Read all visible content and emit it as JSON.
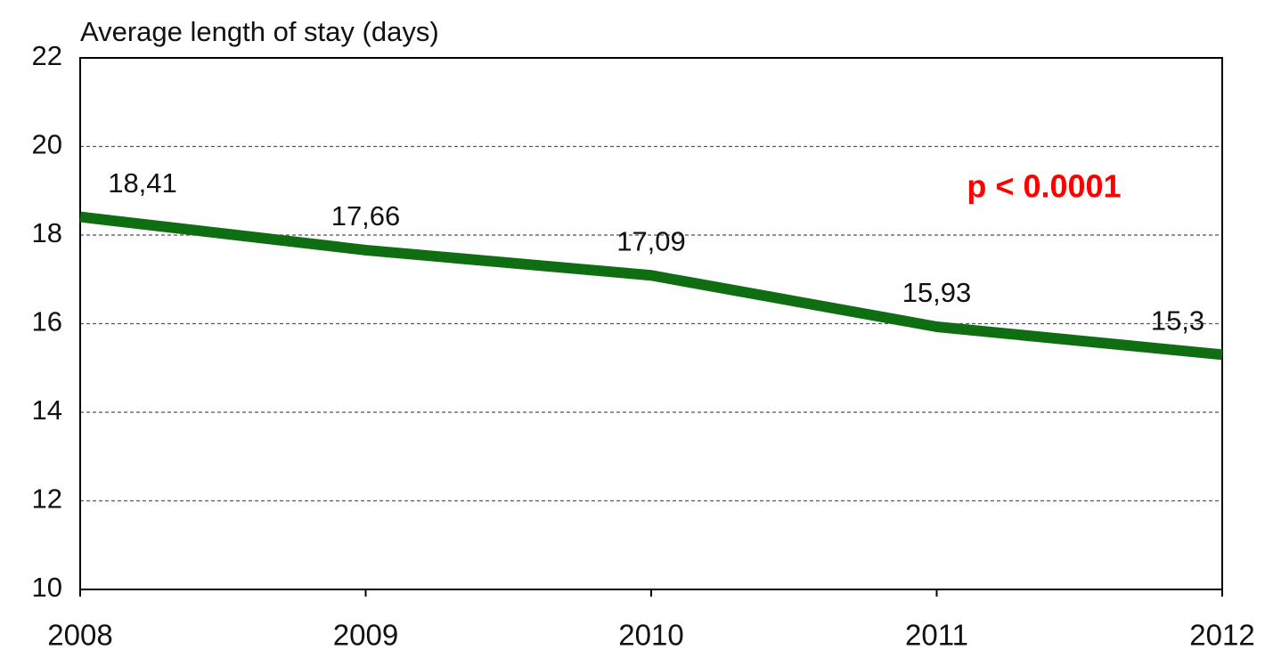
{
  "chart_data": {
    "type": "line",
    "title": "Average length of stay (days)",
    "x": [
      2008,
      2009,
      2010,
      2011,
      2012
    ],
    "values": [
      18.41,
      17.66,
      17.09,
      15.93,
      15.3
    ],
    "value_labels": [
      "18,41",
      "17,66",
      "17,09",
      "15,93",
      "15,3"
    ],
    "color": "#0f6e12",
    "xlim": [
      2008,
      2012
    ],
    "xticks": [
      2008,
      2009,
      2010,
      2011,
      2012
    ],
    "ylim": [
      10,
      22
    ],
    "yticks": [
      10,
      12,
      14,
      16,
      18,
      20,
      22
    ],
    "grid": true,
    "annotation": "p < 0.0001",
    "annotation_color": "#ff0000"
  }
}
